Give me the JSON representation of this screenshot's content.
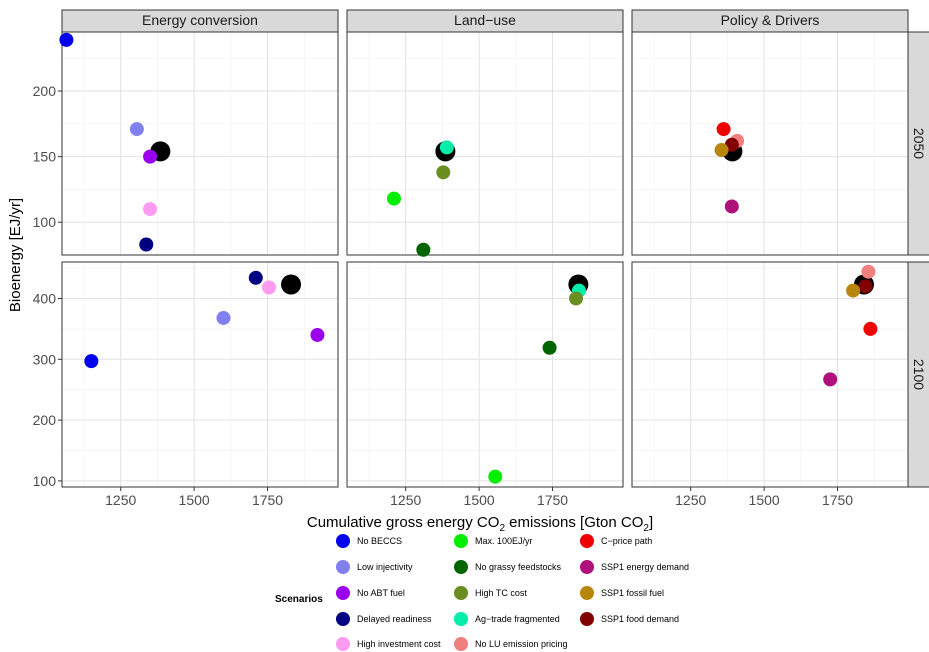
{
  "chart_data": {
    "type": "scatter",
    "xlabel": "Cumulative gross energy CO",
    "xlabel_sub": "2",
    "xlabel_mid": " emissions [Gton CO",
    "xlabel_sub2": "2",
    "xlabel_end": "]",
    "ylabel": "Bioenergy [EJ/yr]",
    "xlim": [
      1050,
      1990
    ],
    "x_ticks": [
      1250,
      1500,
      1750
    ],
    "x_tick_labels": [
      "1250",
      "1500",
      "1750"
    ],
    "facet_columns": [
      "Energy conversion",
      "Land−use",
      "Policy & Drivers"
    ],
    "facet_rows": [
      "2050",
      "2100"
    ],
    "rows": [
      {
        "label": "2050",
        "ylim": [
          75,
          245
        ],
        "y_ticks": [
          100,
          150,
          200
        ],
        "y_tick_labels": [
          "100",
          "150",
          "200"
        ]
      },
      {
        "label": "2100",
        "ylim": [
          90,
          460
        ],
        "y_ticks": [
          100,
          200,
          300,
          400
        ],
        "y_tick_labels": [
          "100",
          "200",
          "300",
          "400"
        ]
      }
    ],
    "legend": {
      "title": "Scenarios",
      "placement": "bottom",
      "columns": [
        [
          {
            "name": "No BECCS",
            "color": "#0000ee"
          },
          {
            "name": "Low injectivity",
            "color": "#8080f0"
          },
          {
            "name": "No ABT fuel",
            "color": "#9a00ee"
          },
          {
            "name": "Delayed readiness",
            "color": "#000080"
          },
          {
            "name": "High investment cost",
            "color": "#ff9bf0"
          }
        ],
        [
          {
            "name": "Max. 100EJ/yr",
            "color": "#00ee00"
          },
          {
            "name": "No grassy feedstocks",
            "color": "#006400"
          },
          {
            "name": "High TC cost",
            "color": "#6b8e23"
          },
          {
            "name": "Ag−trade fragmented",
            "color": "#00eeaa"
          },
          {
            "name": "No LU emission pricing",
            "color": "#f08080"
          }
        ],
        [
          {
            "name": "C−price path",
            "color": "#ee0000"
          },
          {
            "name": "SSP1 energy demand",
            "color": "#b0107a"
          },
          {
            "name": "SSP1 fossil fuel",
            "color": "#b8860b"
          },
          {
            "name": "SSP1 food demand",
            "color": "#800000"
          }
        ]
      ]
    },
    "reference_color": "#000000",
    "points": [
      {
        "facet": "Energy conversion",
        "row": "2050",
        "x": 1385,
        "y": 154,
        "color": "#000000",
        "big": true
      },
      {
        "facet": "Energy conversion",
        "row": "2050",
        "x": 1065,
        "y": 239,
        "color": "#0000ee"
      },
      {
        "facet": "Energy conversion",
        "row": "2050",
        "x": 1305,
        "y": 171,
        "color": "#8080f0"
      },
      {
        "facet": "Energy conversion",
        "row": "2050",
        "x": 1350,
        "y": 150,
        "color": "#9a00ee"
      },
      {
        "facet": "Energy conversion",
        "row": "2050",
        "x": 1350,
        "y": 110,
        "color": "#ff9bf0"
      },
      {
        "facet": "Energy conversion",
        "row": "2050",
        "x": 1337,
        "y": 83,
        "color": "#000080"
      },
      {
        "facet": "Energy conversion",
        "row": "2100",
        "x": 1830,
        "y": 423,
        "color": "#000000",
        "big": true
      },
      {
        "facet": "Energy conversion",
        "row": "2100",
        "x": 1150,
        "y": 297,
        "color": "#0000ee"
      },
      {
        "facet": "Energy conversion",
        "row": "2100",
        "x": 1600,
        "y": 368,
        "color": "#8080f0"
      },
      {
        "facet": "Energy conversion",
        "row": "2100",
        "x": 1920,
        "y": 340,
        "color": "#9a00ee"
      },
      {
        "facet": "Energy conversion",
        "row": "2100",
        "x": 1710,
        "y": 434,
        "color": "#000080"
      },
      {
        "facet": "Energy conversion",
        "row": "2100",
        "x": 1755,
        "y": 418,
        "color": "#ff9bf0"
      },
      {
        "facet": "Land−use",
        "row": "2050",
        "x": 1385,
        "y": 154,
        "color": "#000000",
        "big": true
      },
      {
        "facet": "Land−use",
        "row": "2050",
        "x": 1390,
        "y": 157,
        "color": "#00eeaa"
      },
      {
        "facet": "Land−use",
        "row": "2050",
        "x": 1378,
        "y": 138,
        "color": "#6b8e23"
      },
      {
        "facet": "Land−use",
        "row": "2050",
        "x": 1210,
        "y": 118,
        "color": "#00ee00"
      },
      {
        "facet": "Land−use",
        "row": "2050",
        "x": 1310,
        "y": 79,
        "color": "#006400"
      },
      {
        "facet": "Land−use",
        "row": "2100",
        "x": 1838,
        "y": 423,
        "color": "#000000",
        "big": true
      },
      {
        "facet": "Land−use",
        "row": "2100",
        "x": 1840,
        "y": 413,
        "color": "#00eeaa"
      },
      {
        "facet": "Land−use",
        "row": "2100",
        "x": 1830,
        "y": 400,
        "color": "#6b8e23"
      },
      {
        "facet": "Land−use",
        "row": "2100",
        "x": 1740,
        "y": 319,
        "color": "#006400"
      },
      {
        "facet": "Land−use",
        "row": "2100",
        "x": 1555,
        "y": 107,
        "color": "#00ee00"
      },
      {
        "facet": "Policy & Drivers",
        "row": "2050",
        "x": 1392,
        "y": 154,
        "color": "#000000",
        "big": true
      },
      {
        "facet": "Policy & Drivers",
        "row": "2050",
        "x": 1362,
        "y": 171,
        "color": "#ee0000"
      },
      {
        "facet": "Policy & Drivers",
        "row": "2050",
        "x": 1408,
        "y": 162,
        "color": "#f08080"
      },
      {
        "facet": "Policy & Drivers",
        "row": "2050",
        "x": 1390,
        "y": 159,
        "color": "#800000"
      },
      {
        "facet": "Policy & Drivers",
        "row": "2050",
        "x": 1355,
        "y": 155,
        "color": "#b8860b"
      },
      {
        "facet": "Policy & Drivers",
        "row": "2050",
        "x": 1390,
        "y": 112,
        "color": "#b0107a"
      },
      {
        "facet": "Policy & Drivers",
        "row": "2100",
        "x": 1840,
        "y": 423,
        "color": "#000000",
        "big": true
      },
      {
        "facet": "Policy & Drivers",
        "row": "2100",
        "x": 1855,
        "y": 444,
        "color": "#f08080"
      },
      {
        "facet": "Policy & Drivers",
        "row": "2100",
        "x": 1845,
        "y": 420,
        "color": "#800000"
      },
      {
        "facet": "Policy & Drivers",
        "row": "2100",
        "x": 1803,
        "y": 413,
        "color": "#b8860b"
      },
      {
        "facet": "Policy & Drivers",
        "row": "2100",
        "x": 1862,
        "y": 350,
        "color": "#ee0000"
      },
      {
        "facet": "Policy & Drivers",
        "row": "2100",
        "x": 1725,
        "y": 267,
        "color": "#b0107a"
      }
    ]
  }
}
